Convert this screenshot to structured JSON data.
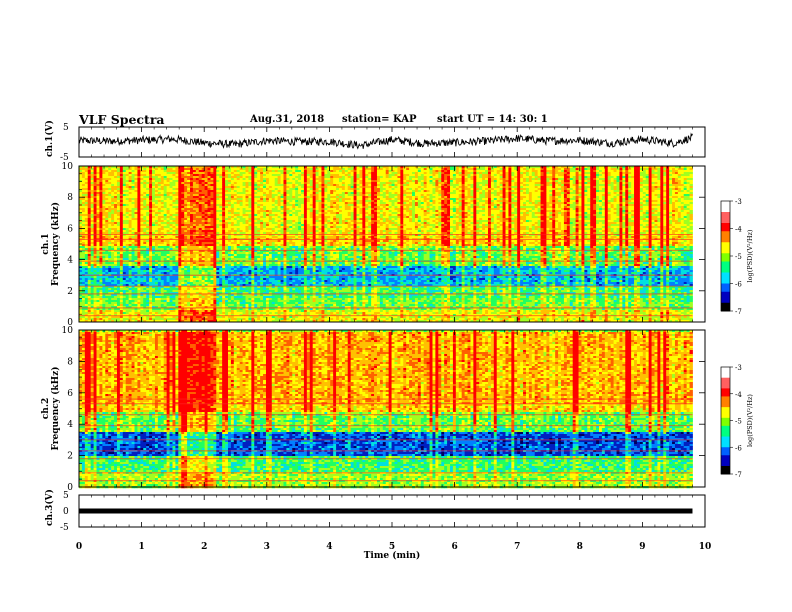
{
  "header": {
    "title": "VLF Spectra",
    "date": "Aug.31, 2018",
    "station": "station= KAP",
    "start": "start UT = 14: 30: 1"
  },
  "colorbar": {
    "label": "log(PSD)(V²/Hz)",
    "ticks": [
      "-3",
      "-4",
      "-5",
      "-6",
      "-7"
    ],
    "colors": [
      "#ffffff",
      "#ff3030",
      "#ff0000",
      "#ffa000",
      "#ffff00",
      "#a0ff00",
      "#00ff60",
      "#00e0ff",
      "#0060ff",
      "#0000c0",
      "#000000"
    ]
  },
  "chart_data": [
    {
      "type": "line",
      "panel": "ch1-waveform",
      "ylabel": "ch.1(V)",
      "ylim": [
        -5,
        5
      ],
      "yticks": [
        "5",
        "-5"
      ],
      "xlim": [
        0,
        10
      ],
      "description_series": [
        {
          "t": [
            0,
            0.5,
            1,
            1.5,
            2,
            2.5,
            3,
            3.5,
            4,
            4.5,
            5,
            5.5,
            6,
            6.5,
            7,
            7.5,
            8,
            8.5,
            9,
            9.5,
            9.8
          ],
          "v": [
            0.5,
            0.3,
            0.6,
            1.0,
            -0.3,
            -0.8,
            0.5,
            0.1,
            0.2,
            -1.2,
            0.8,
            -0.5,
            -0.2,
            0.3,
            1.2,
            0.4,
            0.6,
            -0.4,
            0.9,
            -0.4,
            1.5
          ]
        }
      ]
    },
    {
      "type": "heatmap",
      "panel": "ch1-spectrogram",
      "ylabel": "ch.1 Frequency (kHz)",
      "ylim": [
        0,
        10
      ],
      "yticks": [
        "10",
        "8",
        "6",
        "4",
        "2",
        "0"
      ],
      "xlim": [
        0,
        9.8
      ],
      "zlim": [
        -7,
        -3
      ],
      "bands": [
        {
          "f": [
            0,
            0.8
          ],
          "level": -4.5
        },
        {
          "f": [
            0.8,
            1.6
          ],
          "level": -5.0
        },
        {
          "f": [
            1.6,
            2.4
          ],
          "level": -5.2
        },
        {
          "f": [
            2.4,
            3.6
          ],
          "level": -5.8
        },
        {
          "f": [
            3.6,
            5.0
          ],
          "level": -5.0
        },
        {
          "f": [
            5.0,
            5.6
          ],
          "level": -4.2
        },
        {
          "f": [
            5.6,
            10
          ],
          "level": -4.4
        }
      ],
      "disturbed_interval_min": [
        1.6,
        2.2
      ]
    },
    {
      "type": "heatmap",
      "panel": "ch2-spectrogram",
      "ylabel": "ch.2 Frequency (kHz)",
      "ylim": [
        0,
        10
      ],
      "yticks": [
        "10",
        "8",
        "6",
        "4",
        "2",
        "0"
      ],
      "xlim": [
        0,
        9.8
      ],
      "zlim": [
        -7,
        -3
      ],
      "bands": [
        {
          "f": [
            0,
            1.0
          ],
          "level": -4.8
        },
        {
          "f": [
            1.0,
            2.0
          ],
          "level": -5.2
        },
        {
          "f": [
            2.0,
            3.6
          ],
          "level": -6.2
        },
        {
          "f": [
            3.6,
            4.8
          ],
          "level": -5.0
        },
        {
          "f": [
            4.8,
            5.4
          ],
          "level": -4.2
        },
        {
          "f": [
            5.4,
            10
          ],
          "level": -4.0
        }
      ],
      "disturbed_interval_min": [
        1.6,
        2.2
      ]
    },
    {
      "type": "line",
      "panel": "ch3-waveform",
      "ylabel": "ch.3(V)",
      "ylim": [
        -5,
        5
      ],
      "yticks": [
        "5",
        "0",
        "-5"
      ],
      "xlim": [
        0,
        10
      ],
      "xlabel": "Time (min)",
      "xticks": [
        "0",
        "1",
        "2",
        "3",
        "4",
        "5",
        "6",
        "7",
        "8",
        "9",
        "10"
      ],
      "constant_value": 0
    }
  ]
}
